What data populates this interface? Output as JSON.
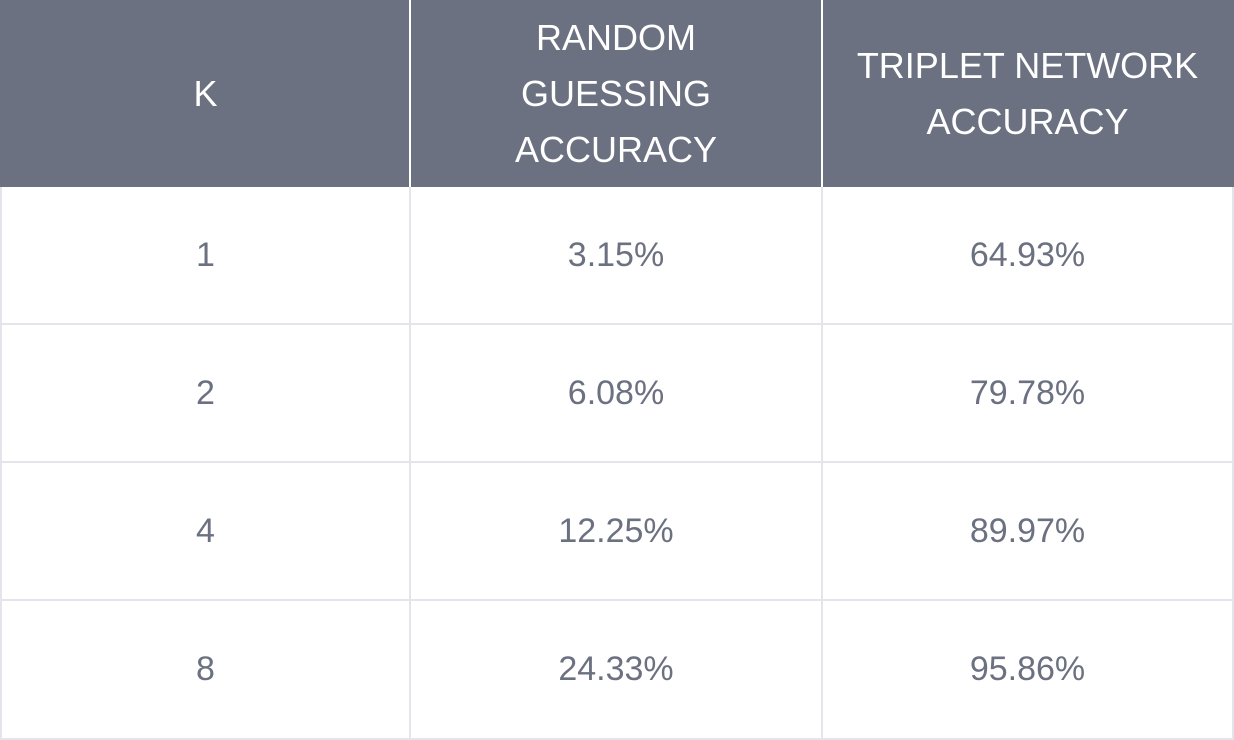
{
  "table": {
    "headers": [
      "K",
      "RANDOM GUESSING ACCURACY",
      "TRIPLET NETWORK ACCURACY"
    ],
    "rows": [
      [
        "1",
        "3.15%",
        "64.93%"
      ],
      [
        "2",
        "6.08%",
        "79.78%"
      ],
      [
        "4",
        "12.25%",
        "89.97%"
      ],
      [
        "8",
        "24.33%",
        "95.86%"
      ]
    ]
  },
  "colors": {
    "header_background": "#6b7180",
    "header_text": "#ffffff",
    "body_text": "#6b7180",
    "grid_line": "#e3e5ea"
  }
}
